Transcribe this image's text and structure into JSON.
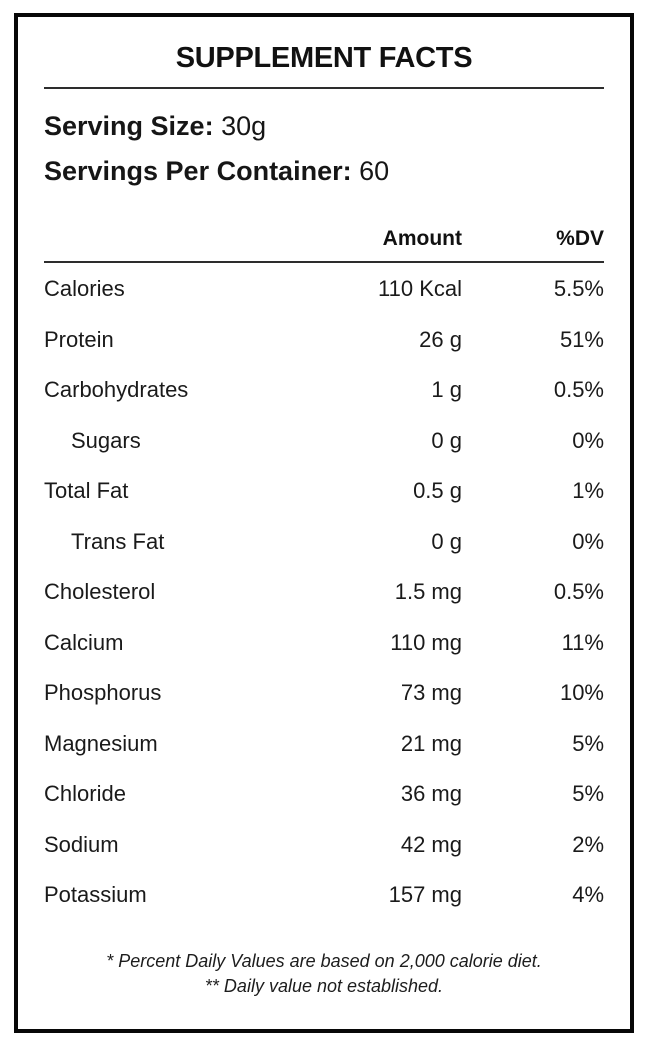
{
  "label": {
    "title": "SUPPLEMENT FACTS",
    "serving": [
      {
        "label": "Serving Size:",
        "value": "30g"
      },
      {
        "label": "Servings Per Container:",
        "value": "60"
      }
    ],
    "columns": {
      "amount": "Amount",
      "dv": "%DV"
    },
    "rows": [
      {
        "name": "Calories",
        "amount": "110 Kcal",
        "dv": "5.5%",
        "indent": false
      },
      {
        "name": "Protein",
        "amount": "26 g",
        "dv": "51%",
        "indent": false
      },
      {
        "name": "Carbohydrates",
        "amount": "1 g",
        "dv": "0.5%",
        "indent": false
      },
      {
        "name": "Sugars",
        "amount": "0 g",
        "dv": "0%",
        "indent": true
      },
      {
        "name": "Total Fat",
        "amount": "0.5 g",
        "dv": "1%",
        "indent": false
      },
      {
        "name": "Trans Fat",
        "amount": "0 g",
        "dv": "0%",
        "indent": true
      },
      {
        "name": "Cholesterol",
        "amount": "1.5 mg",
        "dv": "0.5%",
        "indent": false
      },
      {
        "name": "Calcium",
        "amount": "110 mg",
        "dv": "11%",
        "indent": false
      },
      {
        "name": "Phosphorus",
        "amount": "73 mg",
        "dv": "10%",
        "indent": false
      },
      {
        "name": "Magnesium",
        "amount": "21 mg",
        "dv": "5%",
        "indent": false
      },
      {
        "name": "Chloride",
        "amount": "36 mg",
        "dv": "5%",
        "indent": false
      },
      {
        "name": "Sodium",
        "amount": "42 mg",
        "dv": "2%",
        "indent": false
      },
      {
        "name": "Potassium",
        "amount": "157 mg",
        "dv": "4%",
        "indent": false
      }
    ],
    "footnotes": [
      "* Percent Daily Values are based on 2,000 calorie diet.",
      "** Daily value not established."
    ],
    "colors": {
      "border": "#070707",
      "text": "#1a1a1a",
      "rule": "#2d2d2d",
      "background": "#ffffff"
    }
  }
}
